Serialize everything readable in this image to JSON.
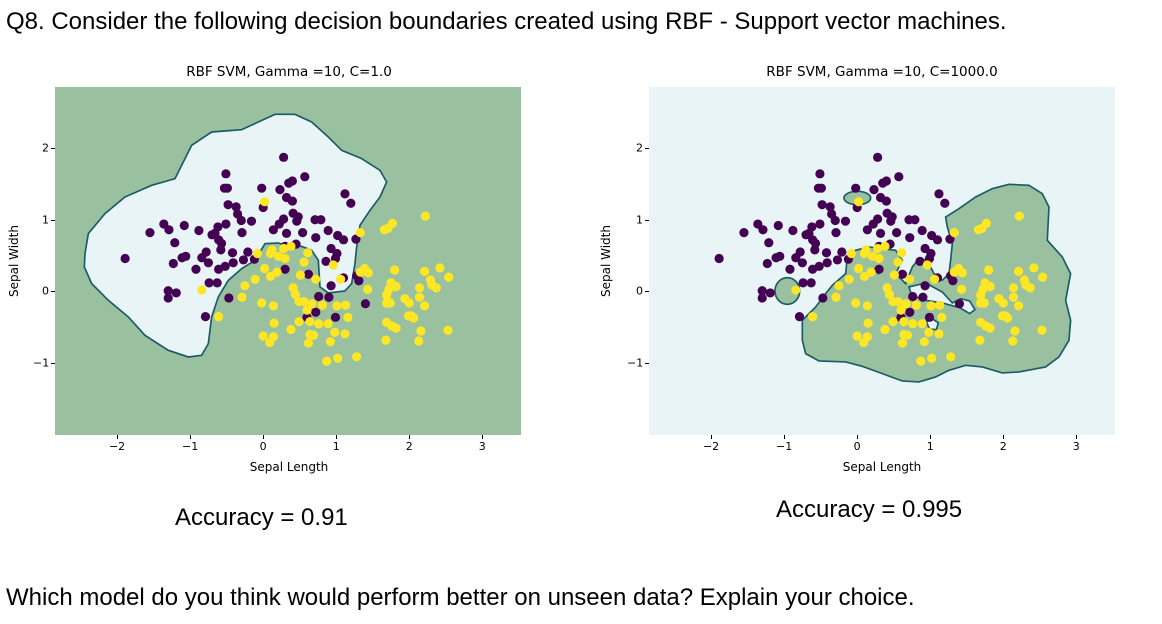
{
  "question_title": "Q8. Consider the following decision boundaries created using RBF - Support vector machines.",
  "question_bottom": "Which model do you think would perform better on unseen data? Explain your choice.",
  "colors": {
    "class0": "#440154",
    "class1": "#fde725",
    "region_class0": "#e8f4f6",
    "region_class1": "#9ac19f",
    "boundary": "#1b5b66"
  },
  "chart_data": [
    {
      "type": "scatter",
      "title": "RBF SVM, Gamma =10, C=1.0",
      "xlabel": "Sepal Length",
      "ylabel": "Sepal Width",
      "xlim": [
        -2.85,
        3.53
      ],
      "ylim": [
        -2.0,
        2.85
      ],
      "xticks": [
        "−2",
        "−1",
        "0",
        "1",
        "2",
        "3"
      ],
      "xtick_values": [
        -2,
        -1,
        0,
        1,
        2,
        3
      ],
      "yticks": [
        "2",
        "1",
        "0",
        "−1"
      ],
      "ytick_values": [
        2,
        1,
        0,
        -1
      ],
      "accuracy_label": "Accuracy = 0.91",
      "background_region": "class1"
    },
    {
      "type": "scatter",
      "title": "RBF SVM, Gamma =10, C=1000.0",
      "xlabel": "Sepal Length",
      "ylabel": "Sepal Width",
      "xlim": [
        -2.85,
        3.53
      ],
      "ylim": [
        -2.0,
        2.85
      ],
      "xticks": [
        "−2",
        "−1",
        "0",
        "1",
        "2",
        "3"
      ],
      "xtick_values": [
        -2,
        -1,
        0,
        1,
        2,
        3
      ],
      "yticks": [
        "2",
        "1",
        "0",
        "−1"
      ],
      "ytick_values": [
        2,
        1,
        0,
        -1
      ],
      "accuracy_label": "Accuracy = 0.995",
      "background_region": "class0"
    }
  ],
  "points": {
    "class0": [
      [
        0.28,
        1.87
      ],
      [
        -0.51,
        1.64
      ],
      [
        -0.53,
        1.44
      ],
      [
        -0.49,
        1.44
      ],
      [
        -0.02,
        1.44
      ],
      [
        0.35,
        1.51
      ],
      [
        0.4,
        1.54
      ],
      [
        0.57,
        1.6
      ],
      [
        0.23,
        1.42
      ],
      [
        1.12,
        1.36
      ],
      [
        1.2,
        1.23
      ],
      [
        0.32,
        1.31
      ],
      [
        0.4,
        1.26
      ],
      [
        0.0,
        1.17
      ],
      [
        -0.48,
        1.21
      ],
      [
        -0.37,
        1.18
      ],
      [
        -0.35,
        1.08
      ],
      [
        -0.3,
        0.99
      ],
      [
        -0.16,
        0.98
      ],
      [
        0.41,
        1.09
      ],
      [
        0.28,
        1.01
      ],
      [
        0.46,
        0.98
      ],
      [
        0.48,
        1.04
      ],
      [
        0.71,
        1.0
      ],
      [
        0.79,
        1.0
      ],
      [
        0.89,
        0.85
      ],
      [
        1.02,
        0.78
      ],
      [
        1.1,
        0.72
      ],
      [
        1.27,
        0.73
      ],
      [
        0.72,
        0.75
      ],
      [
        0.54,
        0.82
      ],
      [
        0.32,
        0.81
      ],
      [
        0.14,
        0.86
      ],
      [
        0.22,
        0.94
      ],
      [
        -0.51,
        0.94
      ],
      [
        -0.62,
        0.9
      ],
      [
        -0.66,
        0.81
      ],
      [
        -0.7,
        0.79
      ],
      [
        -0.61,
        0.72
      ],
      [
        -0.57,
        0.67
      ],
      [
        -0.58,
        0.58
      ],
      [
        -0.42,
        0.54
      ],
      [
        -0.29,
        0.82
      ],
      [
        -0.21,
        0.55
      ],
      [
        -0.27,
        0.44
      ],
      [
        -0.12,
        0.45
      ],
      [
        -0.41,
        0.4
      ],
      [
        -0.52,
        0.35
      ],
      [
        -0.61,
        0.31
      ],
      [
        -0.78,
        0.55
      ],
      [
        -0.84,
        0.47
      ],
      [
        -0.75,
        0.4
      ],
      [
        -0.92,
        0.31
      ],
      [
        -1.11,
        0.47
      ],
      [
        -1.06,
        0.49
      ],
      [
        -1.23,
        0.39
      ],
      [
        -1.21,
        0.68
      ],
      [
        -1.36,
        0.94
      ],
      [
        -1.29,
        0.86
      ],
      [
        -1.08,
        0.92
      ],
      [
        -0.88,
        0.85
      ],
      [
        -1.55,
        0.82
      ],
      [
        -1.89,
        0.46
      ],
      [
        -1.3,
        0.01
      ],
      [
        -1.19,
        -0.02
      ],
      [
        -1.3,
        -0.09
      ],
      [
        -0.74,
        0.12
      ],
      [
        -0.63,
        0.12
      ],
      [
        -0.79,
        -0.35
      ],
      [
        -0.47,
        -0.09
      ],
      [
        0.3,
        0.31
      ],
      [
        0.62,
        0.24
      ],
      [
        0.93,
        0.08
      ],
      [
        1.1,
        0.19
      ],
      [
        1.28,
        0.22
      ],
      [
        1.31,
        0.15
      ],
      [
        0.76,
        -0.07
      ],
      [
        0.9,
        -0.08
      ],
      [
        0.72,
        -0.29
      ],
      [
        0.6,
        -0.36
      ],
      [
        0.99,
        -0.36
      ],
      [
        1.4,
        -0.17
      ],
      [
        0.86,
        0.42
      ],
      [
        0.93,
        0.6
      ],
      [
        1.01,
        0.53
      ],
      [
        0.99,
        0.46
      ],
      [
        0.3,
        0.63
      ],
      [
        0.45,
        0.66
      ]
    ],
    "class1": [
      [
        0.02,
        1.25
      ],
      [
        2.22,
        1.05
      ],
      [
        1.77,
        0.95
      ],
      [
        1.71,
        0.88
      ],
      [
        1.66,
        0.86
      ],
      [
        1.33,
        0.82
      ],
      [
        -0.08,
        0.53
      ],
      [
        0.1,
        0.53
      ],
      [
        0.12,
        0.58
      ],
      [
        0.21,
        0.49
      ],
      [
        0.3,
        0.46
      ],
      [
        0.38,
        0.63
      ],
      [
        0.28,
        0.6
      ],
      [
        0.56,
        0.41
      ],
      [
        0.61,
        0.54
      ],
      [
        0.96,
        0.37
      ],
      [
        0.02,
        0.32
      ],
      [
        0.19,
        0.27
      ],
      [
        0.1,
        0.21
      ],
      [
        -0.11,
        0.17
      ],
      [
        -0.25,
        0.08
      ],
      [
        -0.29,
        -0.08
      ],
      [
        -0.84,
        0.02
      ],
      [
        -0.61,
        -0.35
      ],
      [
        0.41,
        0.05
      ],
      [
        0.44,
        -0.04
      ],
      [
        0.49,
        -0.14
      ],
      [
        0.56,
        -0.14
      ],
      [
        0.51,
        0.23
      ],
      [
        0.72,
        0.17
      ],
      [
        -0.02,
        -0.16
      ],
      [
        0.14,
        -0.2
      ],
      [
        0.67,
        -0.17
      ],
      [
        0.81,
        -0.19
      ],
      [
        1.01,
        -0.2
      ],
      [
        1.13,
        -0.19
      ],
      [
        0.6,
        -0.26
      ],
      [
        0.49,
        -0.42
      ],
      [
        0.64,
        -0.42
      ],
      [
        0.76,
        -0.45
      ],
      [
        0.89,
        -0.45
      ],
      [
        1.16,
        -0.36
      ],
      [
        0.15,
        -0.44
      ],
      [
        0.38,
        -0.53
      ],
      [
        0.98,
        -0.57
      ],
      [
        1.12,
        -0.59
      ],
      [
        0.0,
        -0.62
      ],
      [
        0.14,
        -0.63
      ],
      [
        0.09,
        -0.71
      ],
      [
        0.64,
        -0.6
      ],
      [
        0.69,
        -0.61
      ],
      [
        0.62,
        -0.72
      ],
      [
        0.92,
        -0.7
      ],
      [
        0.87,
        -0.97
      ],
      [
        1.02,
        -0.93
      ],
      [
        1.28,
        -0.91
      ],
      [
        1.39,
        0.32
      ],
      [
        1.44,
        0.26
      ],
      [
        1.33,
        0.27
      ],
      [
        1.06,
        0.17
      ],
      [
        1.43,
        0.03
      ],
      [
        1.8,
        0.3
      ],
      [
        2.21,
        0.28
      ],
      [
        2.42,
        0.33
      ],
      [
        2.54,
        0.2
      ],
      [
        2.29,
        0.16
      ],
      [
        2.31,
        0.09
      ],
      [
        2.37,
        0.05
      ],
      [
        1.75,
        0.12
      ],
      [
        1.82,
        0.07
      ],
      [
        1.72,
        0.03
      ],
      [
        1.69,
        -0.05
      ],
      [
        1.74,
        -0.16
      ],
      [
        1.69,
        -0.16
      ],
      [
        2.14,
        0.05
      ],
      [
        2.14,
        -0.08
      ],
      [
        2.21,
        -0.2
      ],
      [
        1.94,
        -0.1
      ],
      [
        2.0,
        -0.16
      ],
      [
        1.99,
        -0.34
      ],
      [
        2.03,
        -0.34
      ],
      [
        2.06,
        -0.37
      ],
      [
        1.69,
        -0.43
      ],
      [
        1.76,
        -0.48
      ],
      [
        1.82,
        -0.51
      ],
      [
        2.16,
        -0.55
      ],
      [
        2.53,
        -0.54
      ],
      [
        1.68,
        -0.68
      ],
      [
        2.13,
        -0.69
      ]
    ]
  }
}
